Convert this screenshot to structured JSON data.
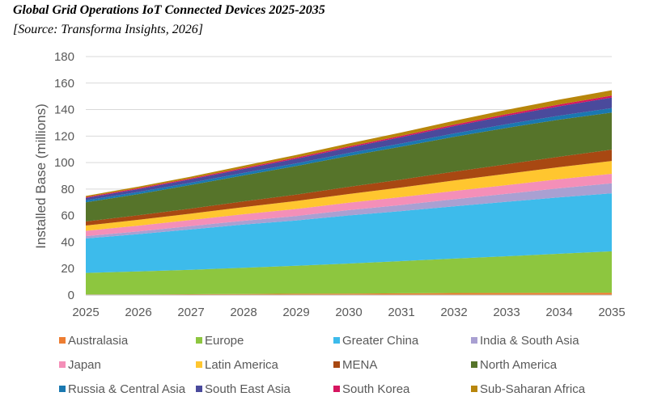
{
  "chart_data": {
    "type": "area",
    "stacked": true,
    "title": "Global Grid Operations IoT Connected Devices 2025-2035",
    "subtitle": "[Source: Transforma Insights, 2026]",
    "xlabel": "",
    "ylabel": "Installed Base (millions)",
    "ylim": [
      0,
      180
    ],
    "yticks": [
      "0",
      "20",
      "40",
      "60",
      "80",
      "100",
      "120",
      "140",
      "160",
      "180"
    ],
    "grid": true,
    "legend_position": "bottom",
    "x": [
      "2025",
      "2026",
      "2027",
      "2028",
      "2029",
      "2030",
      "2031",
      "2032",
      "2033",
      "2034",
      "2035"
    ],
    "series": [
      {
        "name": "Australasia",
        "color": "#ED7D31",
        "values": [
          0.4,
          0.5,
          0.6,
          0.8,
          1.0,
          1.1,
          1.3,
          1.5,
          1.6,
          1.7,
          1.8
        ]
      },
      {
        "name": "Europe",
        "color": "#8DC63F",
        "values": [
          16.3,
          17.3,
          18.5,
          19.8,
          21.1,
          22.7,
          24.3,
          26.0,
          27.7,
          29.5,
          31.2
        ]
      },
      {
        "name": "Greater China",
        "color": "#3DBBEB",
        "values": [
          26.0,
          28.2,
          30.5,
          32.6,
          34.2,
          36.3,
          37.8,
          39.5,
          41.1,
          42.6,
          43.8
        ]
      },
      {
        "name": "India & South Asia",
        "color": "#A9A0D2",
        "values": [
          1.8,
          2.1,
          2.5,
          2.9,
          3.4,
          4.0,
          4.6,
          5.3,
          6.0,
          6.8,
          7.5
        ]
      },
      {
        "name": "Japan",
        "color": "#F48FB8",
        "values": [
          4.0,
          4.3,
          4.6,
          4.9,
          5.3,
          5.6,
          6.0,
          6.3,
          6.6,
          6.9,
          7.2
        ]
      },
      {
        "name": "Latin America",
        "color": "#FFC62F",
        "values": [
          4.0,
          4.4,
          4.8,
          5.4,
          6.0,
          6.6,
          7.2,
          7.9,
          8.5,
          9.1,
          9.7
        ]
      },
      {
        "name": "MENA",
        "color": "#A84812",
        "values": [
          3.0,
          3.4,
          3.8,
          4.3,
          4.8,
          5.4,
          6.0,
          6.6,
          7.2,
          7.8,
          8.6
        ]
      },
      {
        "name": "North America",
        "color": "#56742A",
        "values": [
          14.5,
          16.0,
          17.8,
          19.6,
          21.6,
          23.3,
          24.8,
          26.3,
          27.5,
          28.0,
          28.0
        ]
      },
      {
        "name": "Russia & Central Asia",
        "color": "#1A78B0",
        "values": [
          1.5,
          1.6,
          1.7,
          1.9,
          2.0,
          2.2,
          2.4,
          2.6,
          2.8,
          3.0,
          3.3
        ]
      },
      {
        "name": "South East Asia",
        "color": "#4A4A9C",
        "values": [
          1.8,
          2.2,
          2.6,
          3.0,
          3.5,
          4.1,
          4.8,
          5.5,
          6.3,
          7.1,
          8.0
        ]
      },
      {
        "name": "South Korea",
        "color": "#D6155F",
        "values": [
          0.6,
          0.7,
          0.7,
          0.8,
          0.9,
          0.9,
          1.0,
          1.1,
          1.2,
          1.3,
          1.4
        ]
      },
      {
        "name": "Sub-Saharan Africa",
        "color": "#B8860B",
        "values": [
          0.9,
          1.1,
          1.3,
          1.6,
          1.9,
          2.2,
          2.5,
          2.9,
          3.3,
          3.7,
          4.1
        ]
      }
    ]
  }
}
